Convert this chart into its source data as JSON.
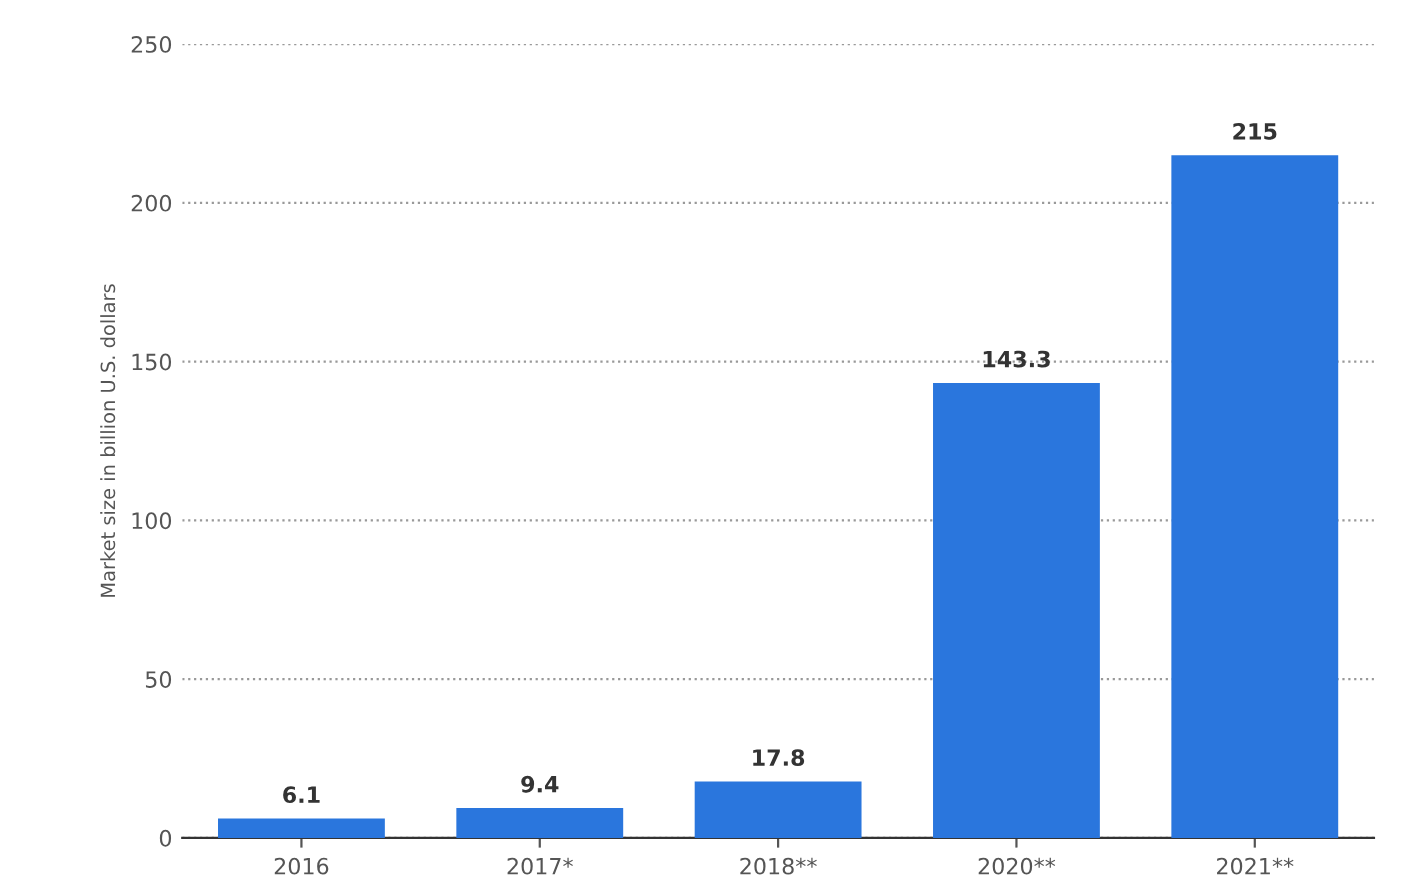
{
  "chart_data": {
    "type": "bar",
    "ylabel": "Market size in billion U.S. dollars",
    "categories": [
      "2016",
      "2017*",
      "2018**",
      "2020**",
      "2021**"
    ],
    "values": [
      6.1,
      9.4,
      17.8,
      143.3,
      215
    ],
    "color": "#2a76dd",
    "ylim": [
      0,
      250
    ],
    "yticks": [
      0,
      50,
      100,
      150,
      200,
      250
    ],
    "grid": "y",
    "data_labels": true
  }
}
